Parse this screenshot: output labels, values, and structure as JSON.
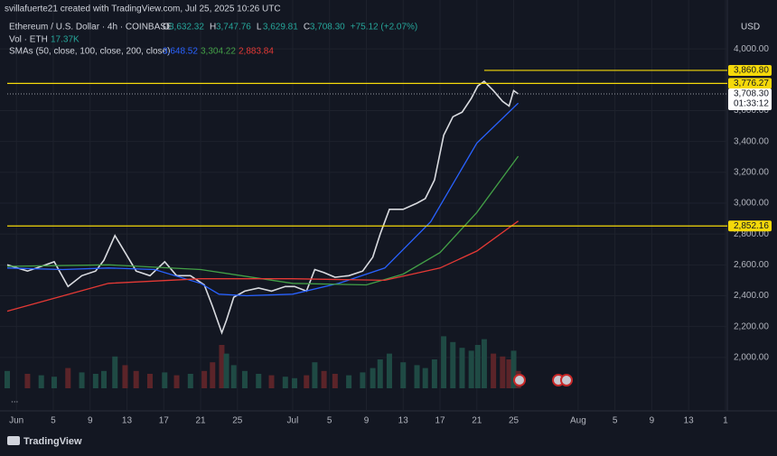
{
  "header": {
    "credit": "svillafuerte21 created with TradingView.com, Jul 25, 2025 10:26 UTC",
    "symbol": "Ethereum / U.S. Dollar · 4h · COINBASE",
    "ohlc": [
      {
        "key": "O",
        "text": "3,632.32"
      },
      {
        "key": "H",
        "text": "3,747.76"
      },
      {
        "key": "L",
        "text": "3,629.81"
      },
      {
        "key": "C",
        "text": "3,708.30"
      }
    ],
    "change": "+75.12 (+2.07%)",
    "volume_label": "Vol · ETH",
    "volume_text": "17.37K",
    "sma_label": "SMAs (50, close, 100, close, 200, close)",
    "sma_texts": [
      "3,648.52",
      "3,304.22",
      "2,883.84"
    ],
    "currency": "USD",
    "more": "...",
    "brand": "TradingView"
  },
  "chart_data": {
    "type": "line",
    "xlim": [
      -1,
      77.2
    ],
    "ylim": [
      1800,
      4200
    ],
    "xticks": [
      {
        "value": 0,
        "label": "Jun"
      },
      {
        "value": 4,
        "label": "5"
      },
      {
        "value": 8,
        "label": "9"
      },
      {
        "value": 12,
        "label": "13"
      },
      {
        "value": 16,
        "label": "17"
      },
      {
        "value": 20,
        "label": "21"
      },
      {
        "value": 24,
        "label": "25"
      },
      {
        "value": 30,
        "label": "Jul"
      },
      {
        "value": 34,
        "label": "5"
      },
      {
        "value": 38,
        "label": "9"
      },
      {
        "value": 42,
        "label": "13"
      },
      {
        "value": 46,
        "label": "17"
      },
      {
        "value": 50,
        "label": "21"
      },
      {
        "value": 54,
        "label": "25"
      },
      {
        "value": 61,
        "label": "Aug"
      },
      {
        "value": 65,
        "label": "5"
      },
      {
        "value": 69,
        "label": "9"
      },
      {
        "value": 73,
        "label": "13"
      },
      {
        "value": 77,
        "label": "1"
      }
    ],
    "yticks": [
      {
        "value": 2000,
        "label": "2,000.00"
      },
      {
        "value": 2200,
        "label": "2,200.00"
      },
      {
        "value": 2400,
        "label": "2,400.00"
      },
      {
        "value": 2600,
        "label": "2,600.00"
      },
      {
        "value": 2800,
        "label": "2,800.00"
      },
      {
        "value": 3000,
        "label": "3,000.00"
      },
      {
        "value": 3200,
        "label": "3,200.00"
      },
      {
        "value": 3400,
        "label": "3,400.00"
      },
      {
        "value": 3600,
        "label": "3,600.00"
      },
      {
        "value": 4000,
        "label": "4,000.00"
      }
    ],
    "grid": true,
    "series": [
      {
        "name": "ETH/USD",
        "color": "#d9dbe0",
        "x": [
          -1.0,
          1.2,
          2.7,
          4.1,
          5.6,
          7.1,
          8.6,
          9.5,
          10.7,
          11.8,
          13.0,
          14.5,
          16.1,
          17.4,
          18.9,
          20.4,
          21.3,
          22.3,
          22.8,
          23.6,
          24.8,
          26.3,
          27.7,
          29.2,
          30.2,
          31.5,
          32.4,
          33.4,
          34.6,
          36.1,
          37.6,
          38.7,
          39.5,
          40.5,
          42.0,
          43.5,
          44.4,
          45.4,
          46.4,
          47.4,
          48.4,
          49.4,
          50.1,
          50.8,
          51.8,
          52.8,
          53.5,
          54.0,
          54.5
        ],
        "values": [
          2600,
          2560,
          2590,
          2620,
          2460,
          2530,
          2560,
          2630,
          2790,
          2680,
          2560,
          2530,
          2620,
          2530,
          2530,
          2470,
          2330,
          2160,
          2240,
          2390,
          2430,
          2450,
          2430,
          2460,
          2460,
          2430,
          2570,
          2550,
          2520,
          2530,
          2560,
          2650,
          2800,
          2960,
          2960,
          3000,
          3030,
          3150,
          3440,
          3560,
          3590,
          3680,
          3760,
          3790,
          3730,
          3660,
          3630,
          3730,
          3708.3
        ]
      },
      {
        "name": "SMA 50",
        "color": "#2962ff",
        "x": [
          -1,
          5,
          10,
          15,
          20,
          22,
          25,
          30,
          35,
          40,
          45,
          50,
          54.5
        ],
        "values": [
          2580,
          2570,
          2580,
          2570,
          2480,
          2410,
          2400,
          2410,
          2480,
          2580,
          2880,
          3390,
          3648.52
        ]
      },
      {
        "name": "SMA 100",
        "color": "#43a047",
        "x": [
          -1,
          10,
          20,
          30,
          38,
          42,
          46,
          50,
          54.5
        ],
        "values": [
          2590,
          2600,
          2570,
          2480,
          2470,
          2540,
          2680,
          2940,
          3304.22
        ]
      },
      {
        "name": "SMA 200",
        "color": "#e53935",
        "x": [
          -1,
          10,
          20,
          30,
          40,
          46,
          50,
          54.5
        ],
        "values": [
          2300,
          2480,
          2510,
          2510,
          2500,
          2580,
          2690,
          2883.84
        ]
      }
    ],
    "volume": {
      "color_up": "#1f4a44",
      "color_down": "#5b2429",
      "max": 250,
      "values": [
        60,
        50,
        45,
        40,
        70,
        55,
        50,
        60,
        110,
        80,
        60,
        50,
        55,
        45,
        50,
        60,
        90,
        150,
        120,
        80,
        60,
        50,
        45,
        40,
        35,
        45,
        90,
        60,
        50,
        45,
        55,
        70,
        100,
        120,
        90,
        80,
        70,
        100,
        180,
        160,
        140,
        130,
        150,
        170,
        120,
        110,
        100,
        130,
        60
      ]
    },
    "levels": [
      {
        "value": 3860.8,
        "label": "3,860.80",
        "start": 50.8,
        "color": "#f5d90a"
      },
      {
        "value": 3776.27,
        "label": "3,776.27",
        "start": -1,
        "color": "#f5d90a"
      },
      {
        "value": 2852.16,
        "label": "2,852.16",
        "start": -1,
        "color": "#f5d90a"
      }
    ],
    "last_price": {
      "value": 3708.3,
      "label": "3,708.30"
    },
    "countdown": "01:33:12"
  }
}
